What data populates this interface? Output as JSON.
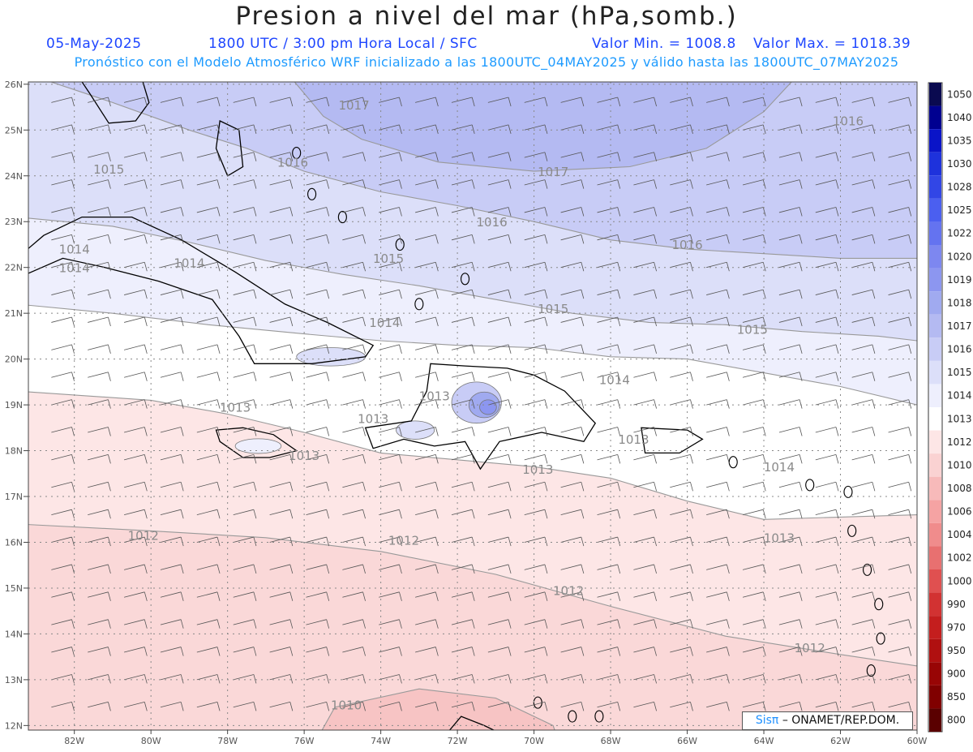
{
  "header": {
    "title": "Presion a nivel del mar (hPa,somb.)",
    "date": "05-May-2025",
    "time": "1800 UTC / 3:00 pm Hora Local / SFC",
    "vmin": "Valor Min. = 1008.8",
    "vmax": "Valor Max. = 1018.39",
    "subtitle": "Pronóstico con el Modelo Atmosférico WRF inicializado a las 1800UTC_04MAY2025 y válido hasta las  1800UTC_07MAY2025"
  },
  "map": {
    "lat_labels": [
      "26N",
      "25N",
      "24N",
      "23N",
      "22N",
      "21N",
      "20N",
      "19N",
      "18N",
      "17N",
      "16N",
      "15N",
      "14N",
      "13N",
      "12N"
    ],
    "lon_labels": [
      "82W",
      "80W",
      "78W",
      "76W",
      "74W",
      "72W",
      "70W",
      "68W",
      "66W",
      "64W",
      "62W",
      "60W"
    ],
    "isobar_labels": [
      {
        "text": "1017",
        "lon": -74.7,
        "lat": 25.45
      },
      {
        "text": "1017",
        "lon": -69.5,
        "lat": 24.0
      },
      {
        "text": "1016",
        "lon": -61.8,
        "lat": 25.1
      },
      {
        "text": "1016",
        "lon": -76.3,
        "lat": 24.2
      },
      {
        "text": "1016",
        "lon": -71.1,
        "lat": 22.9
      },
      {
        "text": "1016",
        "lon": -66.0,
        "lat": 22.4
      },
      {
        "text": "1015",
        "lon": -81.1,
        "lat": 24.05
      },
      {
        "text": "1015",
        "lon": -73.8,
        "lat": 22.1
      },
      {
        "text": "1015",
        "lon": -69.5,
        "lat": 21.0
      },
      {
        "text": "1015",
        "lon": -64.3,
        "lat": 20.55
      },
      {
        "text": "1014",
        "lon": -82.0,
        "lat": 22.3
      },
      {
        "text": "1014",
        "lon": -82.0,
        "lat": 21.9
      },
      {
        "text": "1014",
        "lon": -79.0,
        "lat": 22.0
      },
      {
        "text": "1014",
        "lon": -73.9,
        "lat": 20.7
      },
      {
        "text": "1014",
        "lon": -67.9,
        "lat": 19.45
      },
      {
        "text": "1014",
        "lon": -63.6,
        "lat": 17.55
      },
      {
        "text": "1013",
        "lon": -77.8,
        "lat": 18.85
      },
      {
        "text": "1013",
        "lon": -72.6,
        "lat": 19.1
      },
      {
        "text": "1013",
        "lon": -74.2,
        "lat": 18.6
      },
      {
        "text": "1013",
        "lon": -76.0,
        "lat": 17.8
      },
      {
        "text": "1013",
        "lon": -69.9,
        "lat": 17.5
      },
      {
        "text": "1013",
        "lon": -67.4,
        "lat": 18.15
      },
      {
        "text": "1013",
        "lon": -63.6,
        "lat": 16.0
      },
      {
        "text": "1012",
        "lon": -80.2,
        "lat": 16.05
      },
      {
        "text": "1012",
        "lon": -73.4,
        "lat": 15.95
      },
      {
        "text": "1012",
        "lon": -69.1,
        "lat": 14.85
      },
      {
        "text": "1012",
        "lon": -62.8,
        "lat": 13.6
      },
      {
        "text": "1010",
        "lon": -74.9,
        "lat": 12.35
      }
    ],
    "legend": {
      "levels": [
        "1050",
        "1040",
        "1035",
        "1030",
        "1028",
        "1025",
        "1022",
        "1020",
        "1019",
        "1018",
        "1017",
        "1016",
        "1015",
        "1014",
        "1013",
        "1012",
        "1010",
        "1008",
        "1006",
        "1004",
        "1002",
        "1000",
        "990",
        "970",
        "950",
        "900",
        "850",
        "800"
      ],
      "colors": [
        "#0a0a50",
        "#000090",
        "#0a14c8",
        "#1e32dc",
        "#3246e6",
        "#4b5ff0",
        "#6473f0",
        "#7d87f0",
        "#8c96f0",
        "#a0aaf0",
        "#b4baf2",
        "#c8ccf6",
        "#dcdff9",
        "#eeeffd",
        "#ffffff",
        "#fde6e6",
        "#fad2d2",
        "#f7baba",
        "#f5a3a3",
        "#f08c8c",
        "#e87070",
        "#e05050",
        "#d23232",
        "#c41e1e",
        "#b01010",
        "#980505",
        "#800000",
        "#5a0000"
      ]
    },
    "credit": {
      "sis": "Sisπ",
      "rest": "– ONAMET/REP.DOM."
    }
  }
}
